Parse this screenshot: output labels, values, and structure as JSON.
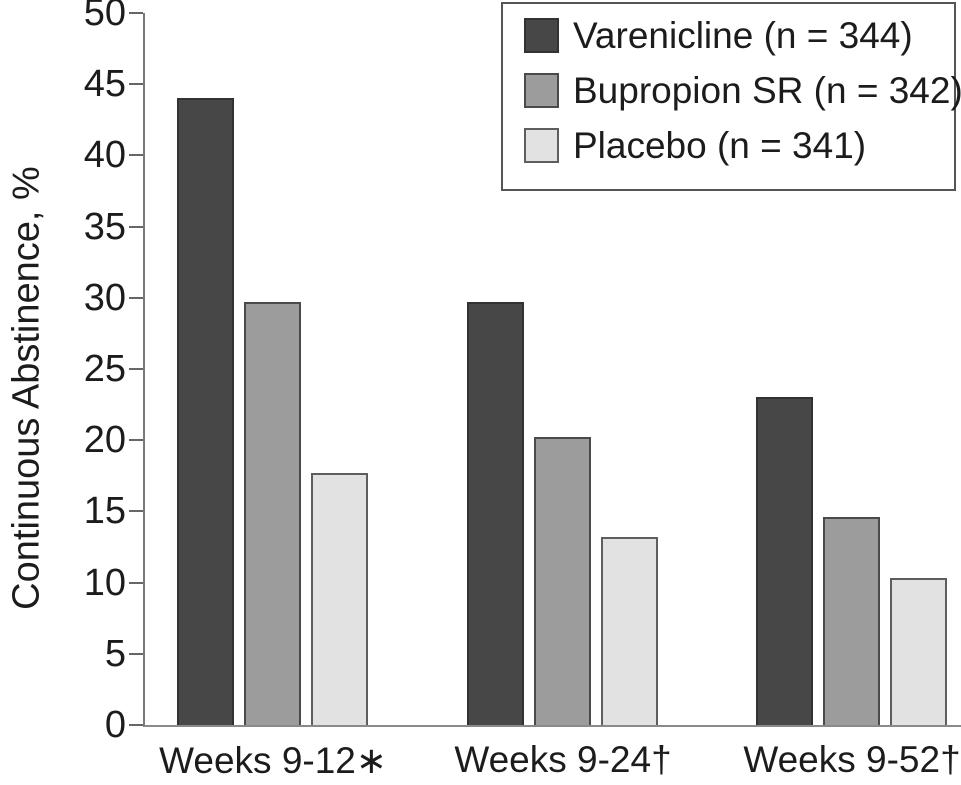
{
  "chart_data": {
    "type": "bar",
    "title": "",
    "xlabel": "",
    "ylabel": "Continuous Abstinence, %",
    "ylim": [
      0,
      50
    ],
    "yticks": [
      0,
      5,
      10,
      15,
      20,
      25,
      30,
      35,
      40,
      45,
      50
    ],
    "categories": [
      "Weeks 9-12∗",
      "Weeks 9-24†",
      "Weeks 9-52†"
    ],
    "series": [
      {
        "name": "Varenicline (n = 344)",
        "color": "#474747",
        "border_color": "#323232",
        "values": [
          44.0,
          29.7,
          23.0
        ]
      },
      {
        "name": "Bupropion SR (n = 342)",
        "color": "#9c9c9c",
        "border_color": "#4a4a4a",
        "values": [
          29.7,
          20.2,
          14.6
        ]
      },
      {
        "name": "Placebo (n = 341)",
        "color": "#e2e2e2",
        "border_color": "#5e5e5e",
        "values": [
          17.7,
          13.2,
          10.3
        ]
      }
    ],
    "legend_position": "top-right",
    "grid": false,
    "axis_color": "#7a7a7a",
    "text_color": "#1c1c1c"
  }
}
